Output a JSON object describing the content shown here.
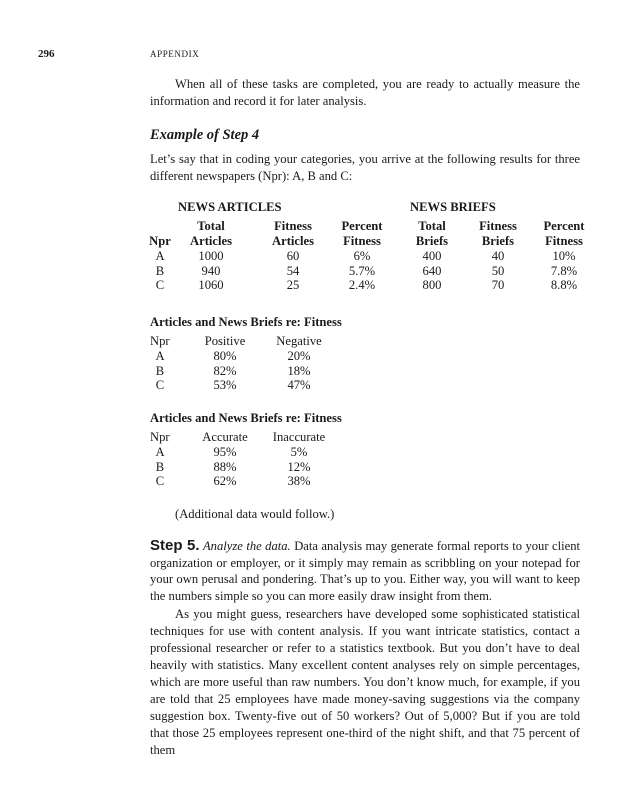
{
  "header": {
    "page_number": "296",
    "running_head": "APPENDIX"
  },
  "intro_paragraph": "When all of these tasks are completed, you are ready to actually measure the information and record it for later analysis.",
  "example_heading": "Example of Step 4",
  "example_paragraph": "Let’s say that in coding your categories, you arrive at the following results for three different newspapers (Npr): A, B and C:",
  "table1": {
    "group_headers": [
      "NEWS ARTICLES",
      "NEWS BRIEFS"
    ],
    "header_line1": [
      "",
      "Total",
      "Fitness",
      "Percent",
      "Total",
      "Fitness",
      "Percent"
    ],
    "header_line2": [
      "Npr",
      "Articles",
      "Articles",
      "Fitness",
      "Briefs",
      "Briefs",
      "Fitness"
    ],
    "rows": [
      [
        "A",
        "1000",
        "60",
        "6%",
        "400",
        "40",
        "10%"
      ],
      [
        "B",
        "940",
        "54",
        "5.7%",
        "640",
        "50",
        "7.8%"
      ],
      [
        "C",
        "1060",
        "25",
        "2.4%",
        "800",
        "70",
        "8.8%"
      ]
    ]
  },
  "table2": {
    "title": "Articles and News Briefs re: Fitness",
    "headers": [
      "Npr",
      "Positive",
      "Negative"
    ],
    "rows": [
      [
        "A",
        "80%",
        "20%"
      ],
      [
        "B",
        "82%",
        "18%"
      ],
      [
        "C",
        "53%",
        "47%"
      ]
    ]
  },
  "table3": {
    "title": "Articles and News Briefs re: Fitness",
    "headers": [
      "Npr",
      "Accurate",
      "Inaccurate"
    ],
    "rows": [
      [
        "A",
        "95%",
        "5%"
      ],
      [
        "B",
        "88%",
        "12%"
      ],
      [
        "C",
        "62%",
        "38%"
      ]
    ]
  },
  "additional_note": "(Additional data would follow.)",
  "step5": {
    "label": "Step 5.",
    "title": "Analyze the data.",
    "text": "Data analysis may generate formal reports to your client organization or employer, or it simply may remain as scribbling on your notepad for your own perusal and pondering. That’s up to you. Either way, you will want to keep the numbers simple so you can more easily draw insight from them."
  },
  "final_paragraph": "As you might guess, researchers have developed some sophisticated statistical techniques for use with content analysis. If you want intricate statistics, contact a professional researcher or refer to a statistics textbook. But you don’t have to deal heavily with statistics. Many excellent content analyses rely on simple percentages, which are more useful than raw numbers. You don’t know much, for example, if you are told that 25 employees have made money-saving suggestions via the company suggestion box. Twenty-five out of 50 workers? Out of 5,000? But if you are told that those 25 employees represent one-third of the night shift, and that 75 percent of them"
}
